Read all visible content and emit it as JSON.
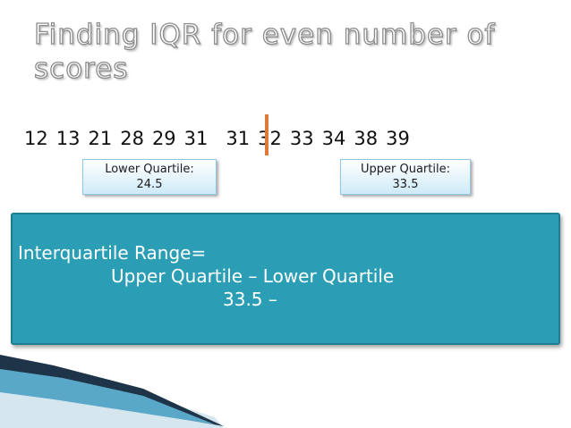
{
  "slide": {
    "title": "Finding IQR for even number of scores",
    "scores": [
      "12",
      "13",
      "21",
      "28",
      "29",
      "31",
      "31",
      "32",
      "33",
      "34",
      "38",
      "39"
    ],
    "lower_quartile": {
      "label": "Lower Quartile:",
      "value": "24.5"
    },
    "upper_quartile": {
      "label": "Upper Quartile:",
      "value": "33.5"
    },
    "iqr": {
      "line1": "Interquartile Range=",
      "line2": "Upper Quartile – Lower Quartile",
      "line3": "33.5 –"
    }
  },
  "colors": {
    "median_line": "#e07a3a",
    "iqr_box_background": "#2b9eb5",
    "iqr_box_border": "#1f7d91",
    "iqr_text": "#ffffff",
    "quartile_box_border": "#8ec8e6",
    "swoosh_dark": "#1e3448",
    "swoosh_light": "#5aa8c8"
  }
}
